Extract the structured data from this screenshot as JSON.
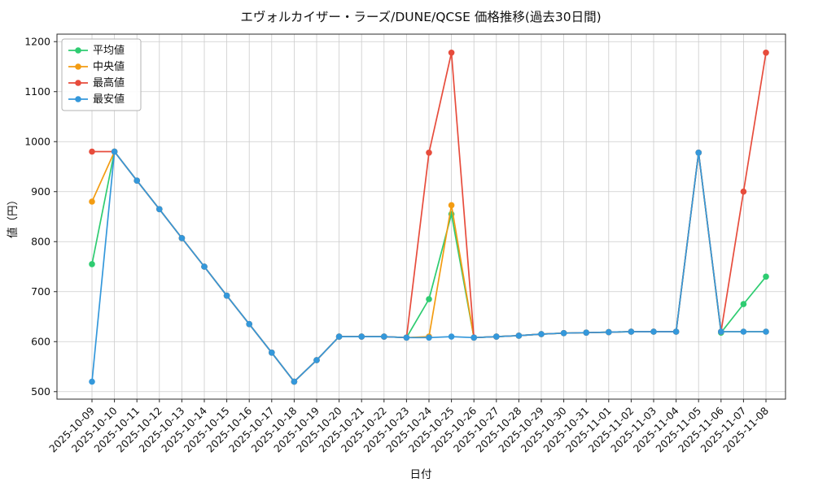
{
  "chart_data": {
    "type": "line",
    "title": "エヴォルカイザー・ラーズ/DUNE/QCSE 価格推移(過去30日間)",
    "xlabel": "日付",
    "ylabel": "値（円）",
    "grid": true,
    "legend_position": "upper-left",
    "marker": "circle",
    "ylim": [
      485,
      1215
    ],
    "yticks": [
      500,
      600,
      700,
      800,
      900,
      1000,
      1100,
      1200
    ],
    "x": [
      "2025-10-09",
      "2025-10-10",
      "2025-10-11",
      "2025-10-12",
      "2025-10-13",
      "2025-10-14",
      "2025-10-15",
      "2025-10-16",
      "2025-10-17",
      "2025-10-18",
      "2025-10-19",
      "2025-10-20",
      "2025-10-21",
      "2025-10-22",
      "2025-10-23",
      "2025-10-24",
      "2025-10-25",
      "2025-10-26",
      "2025-10-27",
      "2025-10-28",
      "2025-10-29",
      "2025-10-30",
      "2025-10-31",
      "2025-11-01",
      "2025-11-02",
      "2025-11-03",
      "2025-11-04",
      "2025-11-05",
      "2025-11-06",
      "2025-11-07",
      "2025-11-08"
    ],
    "series": [
      {
        "key": "average",
        "name": "平均値",
        "color": "#2ecc71",
        "values": [
          755,
          980,
          922,
          865,
          807,
          750,
          692,
          635,
          578,
          520,
          563,
          610,
          610,
          610,
          608,
          685,
          855,
          608,
          610,
          612,
          615,
          617,
          618,
          619,
          620,
          620,
          620,
          978,
          618,
          675,
          730
        ]
      },
      {
        "key": "median",
        "name": "中央値",
        "color": "#f39c12",
        "values": [
          880,
          980,
          922,
          865,
          807,
          750,
          692,
          635,
          578,
          520,
          563,
          610,
          610,
          610,
          608,
          610,
          873,
          608,
          610,
          612,
          615,
          617,
          618,
          619,
          620,
          620,
          620,
          978,
          620,
          620,
          620
        ]
      },
      {
        "key": "highest",
        "name": "最高値",
        "color": "#e74c3c",
        "values": [
          980,
          980,
          922,
          865,
          807,
          750,
          692,
          635,
          578,
          520,
          563,
          610,
          610,
          610,
          608,
          978,
          1178,
          608,
          610,
          612,
          615,
          617,
          618,
          619,
          620,
          620,
          620,
          978,
          620,
          900,
          1178
        ]
      },
      {
        "key": "lowest",
        "name": "最安値",
        "color": "#3498db",
        "values": [
          520,
          980,
          922,
          865,
          807,
          750,
          692,
          635,
          578,
          520,
          563,
          610,
          610,
          610,
          608,
          608,
          610,
          608,
          610,
          612,
          615,
          617,
          618,
          619,
          620,
          620,
          620,
          978,
          620,
          620,
          620
        ]
      }
    ]
  },
  "style": {
    "grid_color": "#cccccc",
    "spine_color": "#2b2b2b",
    "legend_border_color": "#b3b3b3",
    "text_color": "#111111"
  }
}
